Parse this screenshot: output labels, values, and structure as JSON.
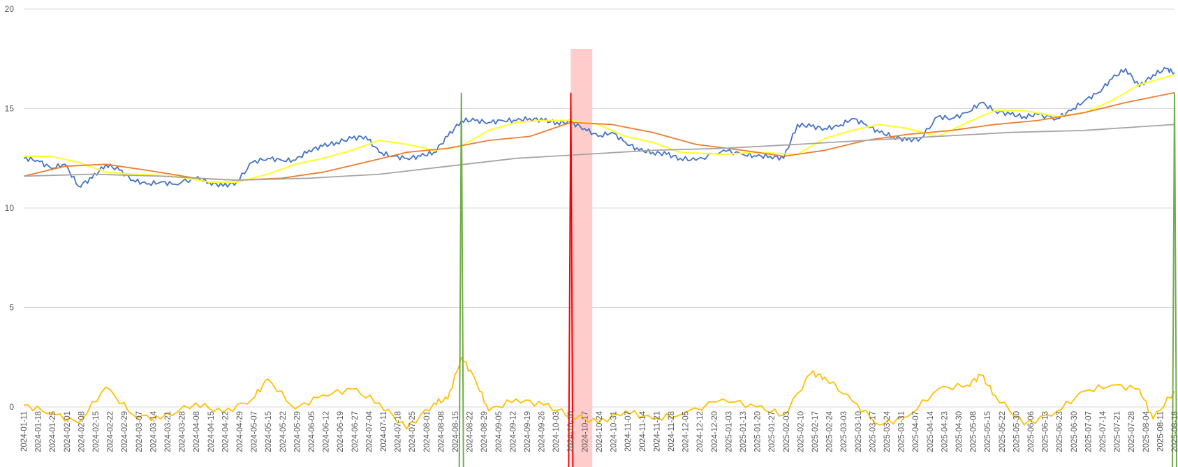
{
  "chart_data": {
    "type": "line",
    "title": "",
    "xlabel": "",
    "ylabel": "",
    "ylim": [
      0,
      20
    ],
    "yticks": [
      0,
      5,
      10,
      15,
      20
    ],
    "grid": true,
    "legend": "none",
    "x_range": [
      "2024-01-11",
      "2025-08-22"
    ],
    "x_tick_labels": [
      "2024-01-11",
      "2024-01-18",
      "2024-01-25",
      "2024-02-01",
      "2024-02-08",
      "2024-02-15",
      "2024-02-22",
      "2024-02-29",
      "2024-03-07",
      "2024-03-14",
      "2024-03-21",
      "2024-03-28",
      "2024-04-08",
      "2024-04-15",
      "2024-04-22",
      "2024-04-29",
      "2024-05-07",
      "2024-05-15",
      "2024-05-22",
      "2024-05-29",
      "2024-06-05",
      "2024-06-12",
      "2024-06-19",
      "2024-06-27",
      "2024-07-04",
      "2024-07-11",
      "2024-07-18",
      "2024-07-25",
      "2024-08-01",
      "2024-08-08",
      "2024-08-15",
      "2024-08-22",
      "2024-08-29",
      "2024-09-05",
      "2024-09-12",
      "2024-09-19",
      "2024-09-26",
      "2024-10-03",
      "2024-10-10",
      "2024-10-17",
      "2024-10-24",
      "2024-10-31",
      "2024-11-07",
      "2024-11-14",
      "2024-11-21",
      "2024-11-28",
      "2024-12-05",
      "2024-12-12",
      "2024-12-20",
      "2025-01-03",
      "2025-01-13",
      "2025-01-20",
      "2025-01-27",
      "2025-02-03",
      "2025-02-10",
      "2025-02-17",
      "2025-02-24",
      "2025-03-03",
      "2025-03-10",
      "2025-03-17",
      "2025-03-24",
      "2025-03-31",
      "2025-04-07",
      "2025-04-14",
      "2025-04-23",
      "2025-04-30",
      "2025-05-08",
      "2025-05-15",
      "2025-05-22",
      "2025-05-30",
      "2025-06-06",
      "2025-06-13",
      "2025-06-23",
      "2025-06-30",
      "2025-07-07",
      "2025-07-14",
      "2025-07-21",
      "2025-07-28",
      "2025-08-04",
      "2025-08-11",
      "2025-08-18"
    ],
    "shaded_band": {
      "from": "2024-10-17",
      "to": "2024-10-28",
      "top": 18,
      "color": "#ffcccc"
    },
    "series": [
      {
        "color": "#4472c4",
        "points": [
          [
            "2024-01-11",
            12.5
          ],
          [
            "2024-01-18",
            12.4
          ],
          [
            "2024-01-25",
            12.0
          ],
          [
            "2024-02-01",
            12.2
          ],
          [
            "2024-02-08",
            11.1
          ],
          [
            "2024-02-15",
            11.5
          ],
          [
            "2024-02-22",
            12.2
          ],
          [
            "2024-02-29",
            11.9
          ],
          [
            "2024-03-07",
            11.4
          ],
          [
            "2024-03-14",
            11.2
          ],
          [
            "2024-03-21",
            11.3
          ],
          [
            "2024-03-28",
            11.2
          ],
          [
            "2024-04-08",
            11.5
          ],
          [
            "2024-04-15",
            11.3
          ],
          [
            "2024-04-22",
            11.1
          ],
          [
            "2024-04-29",
            11.3
          ],
          [
            "2024-05-07",
            12.3
          ],
          [
            "2024-05-15",
            12.5
          ],
          [
            "2024-05-22",
            12.4
          ],
          [
            "2024-05-29",
            12.4
          ],
          [
            "2024-06-05",
            12.9
          ],
          [
            "2024-06-12",
            13.1
          ],
          [
            "2024-06-19",
            13.3
          ],
          [
            "2024-06-27",
            13.5
          ],
          [
            "2024-07-04",
            13.6
          ],
          [
            "2024-07-11",
            12.8
          ],
          [
            "2024-07-18",
            12.6
          ],
          [
            "2024-07-25",
            12.5
          ],
          [
            "2024-08-01",
            12.6
          ],
          [
            "2024-08-08",
            12.8
          ],
          [
            "2024-08-15",
            13.6
          ],
          [
            "2024-08-22",
            14.4
          ],
          [
            "2024-08-29",
            14.4
          ],
          [
            "2024-09-05",
            14.3
          ],
          [
            "2024-09-12",
            14.4
          ],
          [
            "2024-09-19",
            14.4
          ],
          [
            "2024-09-26",
            14.5
          ],
          [
            "2024-10-03",
            14.4
          ],
          [
            "2024-10-10",
            14.3
          ],
          [
            "2024-10-17",
            14.3
          ],
          [
            "2024-10-24",
            14.0
          ],
          [
            "2024-10-31",
            13.6
          ],
          [
            "2024-11-07",
            13.8
          ],
          [
            "2024-11-14",
            13.3
          ],
          [
            "2024-11-21",
            12.9
          ],
          [
            "2024-11-28",
            12.8
          ],
          [
            "2024-12-05",
            12.7
          ],
          [
            "2024-12-12",
            12.5
          ],
          [
            "2024-12-20",
            12.4
          ],
          [
            "2025-01-03",
            12.9
          ],
          [
            "2025-01-13",
            12.7
          ],
          [
            "2025-01-20",
            12.6
          ],
          [
            "2025-01-27",
            12.6
          ],
          [
            "2025-02-03",
            12.5
          ],
          [
            "2025-02-10",
            14.2
          ],
          [
            "2025-02-17",
            14.1
          ],
          [
            "2025-02-24",
            14.0
          ],
          [
            "2025-03-03",
            14.1
          ],
          [
            "2025-03-10",
            14.5
          ],
          [
            "2025-03-17",
            14.2
          ],
          [
            "2025-03-24",
            13.8
          ],
          [
            "2025-03-31",
            13.6
          ],
          [
            "2025-04-07",
            13.4
          ],
          [
            "2025-04-14",
            13.5
          ],
          [
            "2025-04-23",
            14.6
          ],
          [
            "2025-04-30",
            14.5
          ],
          [
            "2025-05-08",
            14.8
          ],
          [
            "2025-05-15",
            15.3
          ],
          [
            "2025-05-22",
            14.9
          ],
          [
            "2025-05-30",
            14.7
          ],
          [
            "2025-06-06",
            14.6
          ],
          [
            "2025-06-13",
            14.7
          ],
          [
            "2025-06-23",
            14.5
          ],
          [
            "2025-06-30",
            14.9
          ],
          [
            "2025-07-07",
            15.4
          ],
          [
            "2025-07-14",
            15.8
          ],
          [
            "2025-07-21",
            16.5
          ],
          [
            "2025-07-28",
            17.0
          ],
          [
            "2025-08-04",
            16.1
          ],
          [
            "2025-08-11",
            16.7
          ],
          [
            "2025-08-18",
            17.0
          ],
          [
            "2025-08-22",
            16.8
          ]
        ]
      },
      {
        "color": "#ffff33",
        "points": [
          [
            "2024-01-11",
            12.6
          ],
          [
            "2024-01-25",
            12.6
          ],
          [
            "2024-02-08",
            12.3
          ],
          [
            "2024-02-22",
            11.8
          ],
          [
            "2024-03-07",
            11.7
          ],
          [
            "2024-03-28",
            11.6
          ],
          [
            "2024-04-15",
            11.3
          ],
          [
            "2024-04-29",
            11.3
          ],
          [
            "2024-05-15",
            11.7
          ],
          [
            "2024-05-29",
            12.2
          ],
          [
            "2024-06-12",
            12.5
          ],
          [
            "2024-06-27",
            12.9
          ],
          [
            "2024-07-11",
            13.4
          ],
          [
            "2024-07-25",
            13.2
          ],
          [
            "2024-08-08",
            12.9
          ],
          [
            "2024-08-22",
            13.1
          ],
          [
            "2024-09-05",
            13.9
          ],
          [
            "2024-09-19",
            14.3
          ],
          [
            "2024-10-03",
            14.4
          ],
          [
            "2024-10-17",
            14.4
          ],
          [
            "2024-10-31",
            14.2
          ],
          [
            "2024-11-14",
            13.6
          ],
          [
            "2024-11-28",
            13.3
          ],
          [
            "2024-12-12",
            12.8
          ],
          [
            "2025-01-03",
            12.7
          ],
          [
            "2025-01-20",
            12.8
          ],
          [
            "2025-02-10",
            12.7
          ],
          [
            "2025-02-24",
            13.5
          ],
          [
            "2025-03-10",
            13.9
          ],
          [
            "2025-03-24",
            14.2
          ],
          [
            "2025-04-07",
            14.0
          ],
          [
            "2025-04-23",
            13.6
          ],
          [
            "2025-05-08",
            14.3
          ],
          [
            "2025-05-22",
            14.9
          ],
          [
            "2025-06-06",
            14.9
          ],
          [
            "2025-06-23",
            14.6
          ],
          [
            "2025-07-07",
            14.8
          ],
          [
            "2025-07-21",
            15.4
          ],
          [
            "2025-08-04",
            16.2
          ],
          [
            "2025-08-22",
            16.7
          ]
        ]
      },
      {
        "color": "#ed7d31",
        "points": [
          [
            "2024-01-11",
            11.6
          ],
          [
            "2024-02-01",
            12.1
          ],
          [
            "2024-02-22",
            12.2
          ],
          [
            "2024-03-14",
            11.9
          ],
          [
            "2024-04-08",
            11.5
          ],
          [
            "2024-04-29",
            11.4
          ],
          [
            "2024-05-22",
            11.5
          ],
          [
            "2024-06-12",
            11.8
          ],
          [
            "2024-07-04",
            12.3
          ],
          [
            "2024-07-25",
            12.8
          ],
          [
            "2024-08-15",
            13.0
          ],
          [
            "2024-09-05",
            13.4
          ],
          [
            "2024-09-26",
            13.6
          ],
          [
            "2024-10-17",
            14.3
          ],
          [
            "2024-11-07",
            14.2
          ],
          [
            "2024-11-28",
            13.8
          ],
          [
            "2024-12-20",
            13.2
          ],
          [
            "2025-01-13",
            12.9
          ],
          [
            "2025-02-03",
            12.6
          ],
          [
            "2025-02-24",
            12.9
          ],
          [
            "2025-03-17",
            13.4
          ],
          [
            "2025-04-07",
            13.7
          ],
          [
            "2025-04-30",
            13.9
          ],
          [
            "2025-05-22",
            14.2
          ],
          [
            "2025-06-13",
            14.4
          ],
          [
            "2025-07-07",
            14.8
          ],
          [
            "2025-07-28",
            15.3
          ],
          [
            "2025-08-22",
            15.8
          ]
        ]
      },
      {
        "color": "#a5a5a5",
        "points": [
          [
            "2024-01-11",
            11.6
          ],
          [
            "2024-02-15",
            11.7
          ],
          [
            "2024-03-21",
            11.6
          ],
          [
            "2024-04-29",
            11.4
          ],
          [
            "2024-06-05",
            11.5
          ],
          [
            "2024-07-11",
            11.7
          ],
          [
            "2024-08-15",
            12.1
          ],
          [
            "2024-09-19",
            12.5
          ],
          [
            "2024-10-24",
            12.7
          ],
          [
            "2024-11-28",
            12.9
          ],
          [
            "2025-01-03",
            13.0
          ],
          [
            "2025-02-10",
            13.2
          ],
          [
            "2025-03-17",
            13.4
          ],
          [
            "2025-04-23",
            13.6
          ],
          [
            "2025-05-30",
            13.8
          ],
          [
            "2025-07-07",
            13.9
          ],
          [
            "2025-08-22",
            14.2
          ]
        ]
      },
      {
        "color": "#ffc000",
        "points": [
          [
            "2024-01-11",
            0.1
          ],
          [
            "2024-01-25",
            -0.3
          ],
          [
            "2024-02-08",
            -0.8
          ],
          [
            "2024-02-22",
            1.0
          ],
          [
            "2024-03-07",
            -0.4
          ],
          [
            "2024-03-21",
            -0.6
          ],
          [
            "2024-04-08",
            0.2
          ],
          [
            "2024-04-22",
            -0.3
          ],
          [
            "2024-05-07",
            0.4
          ],
          [
            "2024-05-15",
            1.4
          ],
          [
            "2024-05-29",
            -0.1
          ],
          [
            "2024-06-12",
            0.6
          ],
          [
            "2024-06-27",
            0.9
          ],
          [
            "2024-07-11",
            0.2
          ],
          [
            "2024-07-25",
            -1.1
          ],
          [
            "2024-08-08",
            0.2
          ],
          [
            "2024-08-15",
            0.4
          ],
          [
            "2024-08-22",
            2.5
          ],
          [
            "2024-08-29",
            1.4
          ],
          [
            "2024-09-05",
            -0.2
          ],
          [
            "2024-09-19",
            0.4
          ],
          [
            "2024-10-03",
            0.1
          ],
          [
            "2024-10-17",
            -0.4
          ],
          [
            "2024-10-31",
            -0.8
          ],
          [
            "2024-11-14",
            -0.2
          ],
          [
            "2024-11-28",
            -0.6
          ],
          [
            "2024-12-12",
            -0.4
          ],
          [
            "2025-01-03",
            0.4
          ],
          [
            "2025-01-20",
            0.0
          ],
          [
            "2025-02-03",
            -0.4
          ],
          [
            "2025-02-17",
            1.7
          ],
          [
            "2025-02-24",
            1.5
          ],
          [
            "2025-03-10",
            0.3
          ],
          [
            "2025-03-24",
            -0.9
          ],
          [
            "2025-04-07",
            -0.5
          ],
          [
            "2025-04-23",
            0.9
          ],
          [
            "2025-05-08",
            1.1
          ],
          [
            "2025-05-15",
            1.6
          ],
          [
            "2025-05-22",
            0.6
          ],
          [
            "2025-06-06",
            -0.9
          ],
          [
            "2025-06-23",
            -0.2
          ],
          [
            "2025-07-07",
            0.8
          ],
          [
            "2025-07-21",
            1.1
          ],
          [
            "2025-08-04",
            0.9
          ],
          [
            "2025-08-11",
            -0.6
          ],
          [
            "2025-08-22",
            0.8
          ]
        ]
      }
    ],
    "spikes": [
      {
        "date": "2024-08-22",
        "color": "#70ad47",
        "top": 15.8
      },
      {
        "date": "2024-10-17",
        "color": "#ff0000",
        "top": 15.8
      },
      {
        "date": "2025-08-22",
        "color": "#70ad47",
        "top": 15.8
      }
    ]
  }
}
